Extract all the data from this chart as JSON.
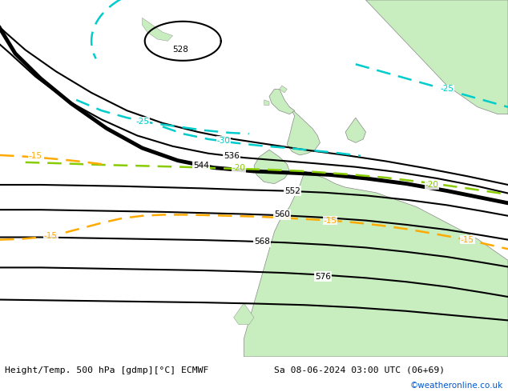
{
  "title_left": "Height/Temp. 500 hPa [gdmp][°C] ECMWF",
  "title_right": "Sa 08-06-2024 03:00 UTC (06+69)",
  "credit": "©weatheronline.co.uk",
  "bg_color": "#e0e0e0",
  "land_color": "#c8eec0",
  "border_color": "#888888",
  "height_color": "#000000",
  "temp_cyan": "#00cccc",
  "temp_lgreen": "#88cc00",
  "temp_orange": "#ffaa00",
  "figsize": [
    6.34,
    4.9
  ],
  "dpi": 100,
  "label_bg": "white"
}
